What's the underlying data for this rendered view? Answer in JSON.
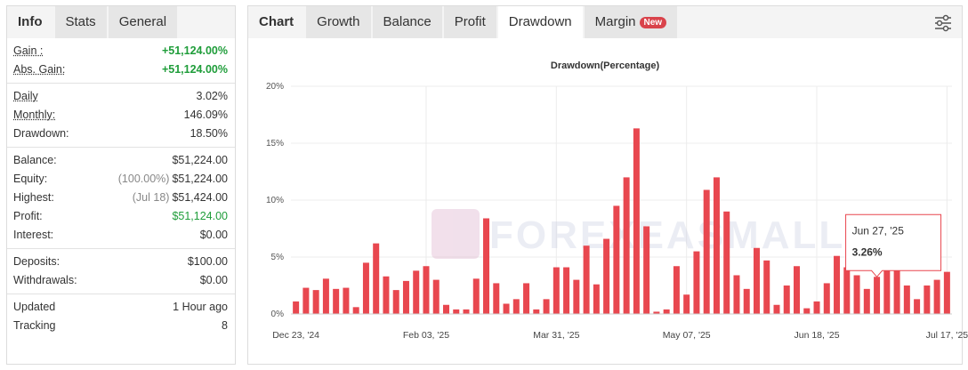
{
  "info_panel": {
    "tabs": [
      "Info",
      "Stats",
      "General"
    ],
    "groups": [
      [
        {
          "label": "Gain :",
          "value": "+51,124.00%",
          "color": "#1f9d3a"
        },
        {
          "label": "Abs. Gain:",
          "value": "+51,124.00%",
          "color": "#1f9d3a"
        }
      ],
      [
        {
          "label": "Daily",
          "value": "3.02%"
        },
        {
          "label": "Monthly:",
          "value": "146.09%"
        },
        {
          "label": "Drawdown:",
          "value": "18.50%"
        }
      ],
      [
        {
          "label": "Balance:",
          "value": "$51,224.00"
        },
        {
          "label": "Equity:",
          "note": "(100.00%)",
          "value": "$51,224.00"
        },
        {
          "label": "Highest:",
          "note": "(Jul 18)",
          "value": "$51,424.00"
        },
        {
          "label": "Profit:",
          "value": "$51,124.00",
          "color": "#1f9d3a"
        },
        {
          "label": "Interest:",
          "value": "$0.00"
        }
      ],
      [
        {
          "label": "Deposits:",
          "value": "$100.00"
        },
        {
          "label": "Withdrawals:",
          "value": "$0.00"
        }
      ],
      [
        {
          "label": "Updated",
          "value": "1 Hour ago"
        },
        {
          "label": "Tracking",
          "value": "8"
        }
      ]
    ]
  },
  "chart_panel": {
    "tabs": [
      "Chart",
      "Growth",
      "Balance",
      "Profit",
      "Drawdown",
      "Margin"
    ],
    "active_tab": "Drawdown",
    "badge": "New",
    "watermark": "FOREXEASMALL"
  },
  "chart_data": {
    "type": "bar",
    "title": "Drawdown(Percentage)",
    "color": "#e8474f",
    "grid": true,
    "ylim": [
      0,
      20
    ],
    "yticks": [
      {
        "value": 0,
        "label": "0%"
      },
      {
        "value": 5,
        "label": "5%"
      },
      {
        "value": 10,
        "label": "10%"
      },
      {
        "value": 15,
        "label": "15%"
      },
      {
        "value": 20,
        "label": "20%"
      }
    ],
    "categories": [
      "Dec 23, '24",
      null,
      null,
      null,
      null,
      null,
      null,
      null,
      null,
      null,
      null,
      null,
      null,
      "Feb 03, '25",
      null,
      null,
      null,
      null,
      null,
      null,
      null,
      null,
      null,
      null,
      null,
      null,
      "Mar 31, '25",
      null,
      null,
      null,
      null,
      null,
      null,
      null,
      null,
      null,
      null,
      null,
      null,
      "May 07, '25",
      null,
      null,
      null,
      null,
      null,
      null,
      null,
      null,
      null,
      null,
      null,
      null,
      "Jun 18, '25",
      null,
      null,
      null,
      null,
      null,
      null,
      null,
      null,
      null,
      null,
      null,
      null,
      "Jul 17, '25"
    ],
    "values": [
      1.1,
      2.3,
      2.1,
      3.1,
      2.2,
      2.3,
      0.6,
      4.5,
      6.2,
      3.3,
      2.1,
      2.9,
      3.8,
      4.2,
      3.0,
      0.8,
      0.4,
      0.4,
      3.1,
      8.4,
      2.7,
      0.9,
      1.3,
      2.7,
      0.4,
      1.3,
      4.1,
      4.1,
      3.0,
      6.0,
      2.6,
      6.6,
      9.5,
      12.0,
      16.3,
      7.7,
      0.2,
      0.4,
      4.2,
      1.7,
      5.5,
      10.9,
      12.0,
      9.0,
      3.4,
      2.2,
      5.8,
      4.7,
      0.8,
      2.5,
      4.2,
      0.5,
      1.1,
      2.7,
      5.1,
      4.1,
      3.4,
      2.2,
      3.26,
      4.1,
      4.1,
      2.5,
      1.3,
      2.5,
      3.0,
      3.7
    ],
    "tooltip": {
      "category": "Jun 27, '25",
      "value": 3.26,
      "label": "3.26%"
    }
  }
}
